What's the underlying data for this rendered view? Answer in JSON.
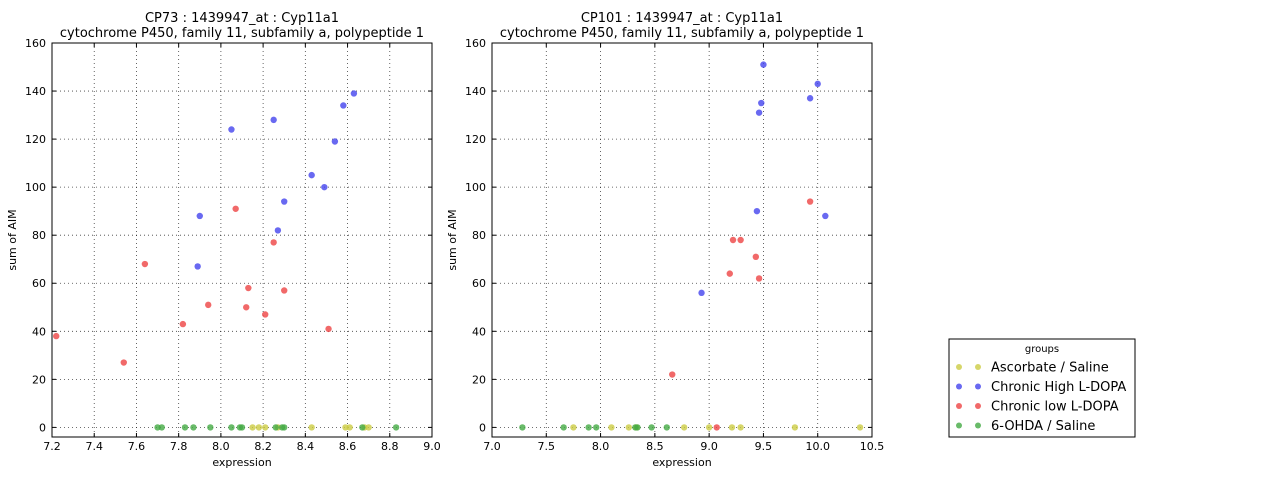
{
  "colors": {
    "ascorbate_saline": "#cccc44",
    "chronic_high": "#4444ee",
    "chronic_low": "#ee4444",
    "ohda_saline": "#44aa44"
  },
  "legend": {
    "title": "groups",
    "placement": "outside-right-bottom",
    "entries": [
      {
        "label": "Ascorbate / Saline",
        "color": "#cccc44"
      },
      {
        "label": "Chronic High L-DOPA",
        "color": "#4444ee"
      },
      {
        "label": "Chronic low L-DOPA",
        "color": "#ee4444"
      },
      {
        "label": "6-OHDA / Saline",
        "color": "#44aa44"
      }
    ]
  },
  "chart_data": [
    {
      "type": "scatter",
      "title": "CP73 : 1439947_at : Cyp11a1",
      "subtitle": "cytochrome P450, family 11, subfamily a, polypeptide 1",
      "xlabel": "expression",
      "ylabel": "sum of AIM",
      "xlim": [
        7.2,
        9.0
      ],
      "ylim": [
        -4,
        160
      ],
      "xticks": [
        7.2,
        7.4,
        7.6,
        7.8,
        8.0,
        8.2,
        8.4,
        8.6,
        8.8,
        9.0
      ],
      "xtick_labels": [
        "7.2",
        "7.4",
        "7.6",
        "7.8",
        "8.0",
        "8.2",
        "8.4",
        "8.6",
        "8.8",
        "9.0"
      ],
      "yticks": [
        0,
        20,
        40,
        60,
        80,
        100,
        120,
        140,
        160
      ],
      "ytick_labels": [
        "0",
        "20",
        "40",
        "60",
        "80",
        "100",
        "120",
        "140",
        "160"
      ],
      "grid": true,
      "series": [
        {
          "name": "Ascorbate / Saline",
          "color": "#cccc44",
          "points": [
            [
              8.15,
              0
            ],
            [
              8.18,
              0
            ],
            [
              8.21,
              0
            ],
            [
              8.27,
              0
            ],
            [
              8.43,
              0
            ],
            [
              8.59,
              0
            ],
            [
              8.61,
              0
            ],
            [
              8.68,
              0
            ],
            [
              8.7,
              0
            ]
          ]
        },
        {
          "name": "Chronic High L-DOPA",
          "color": "#4444ee",
          "points": [
            [
              7.89,
              67
            ],
            [
              7.9,
              88
            ],
            [
              8.05,
              124
            ],
            [
              8.25,
              128
            ],
            [
              8.27,
              82
            ],
            [
              8.3,
              94
            ],
            [
              8.43,
              105
            ],
            [
              8.49,
              100
            ],
            [
              8.54,
              119
            ],
            [
              8.58,
              134
            ],
            [
              8.63,
              139
            ]
          ]
        },
        {
          "name": "Chronic low L-DOPA",
          "color": "#ee4444",
          "points": [
            [
              7.22,
              38
            ],
            [
              7.54,
              27
            ],
            [
              7.64,
              68
            ],
            [
              7.82,
              43
            ],
            [
              7.94,
              51
            ],
            [
              8.07,
              91
            ],
            [
              8.12,
              50
            ],
            [
              8.13,
              58
            ],
            [
              8.21,
              47
            ],
            [
              8.25,
              77
            ],
            [
              8.3,
              57
            ],
            [
              8.51,
              41
            ]
          ]
        },
        {
          "name": "6-OHDA / Saline",
          "color": "#44aa44",
          "points": [
            [
              7.7,
              0
            ],
            [
              7.72,
              0
            ],
            [
              7.83,
              0
            ],
            [
              7.87,
              0
            ],
            [
              7.95,
              0
            ],
            [
              8.05,
              0
            ],
            [
              8.09,
              0
            ],
            [
              8.1,
              0
            ],
            [
              8.26,
              0
            ],
            [
              8.29,
              0
            ],
            [
              8.3,
              0
            ],
            [
              8.67,
              0
            ],
            [
              8.83,
              0
            ]
          ]
        }
      ]
    },
    {
      "type": "scatter",
      "title": "CP101 : 1439947_at : Cyp11a1",
      "subtitle": "cytochrome P450, family 11, subfamily a, polypeptide 1",
      "xlabel": "expression",
      "ylabel": "sum of AIM",
      "xlim": [
        7.0,
        10.5
      ],
      "ylim": [
        -4,
        160
      ],
      "xticks": [
        7.0,
        7.5,
        8.0,
        8.5,
        9.0,
        9.5,
        10.0,
        10.5
      ],
      "xtick_labels": [
        "7.0",
        "7.5",
        "8.0",
        "8.5",
        "9.0",
        "9.5",
        "10.0",
        "10.5"
      ],
      "yticks": [
        0,
        20,
        40,
        60,
        80,
        100,
        120,
        140,
        160
      ],
      "ytick_labels": [
        "0",
        "20",
        "40",
        "60",
        "80",
        "100",
        "120",
        "140",
        "160"
      ],
      "grid": true,
      "series": [
        {
          "name": "Ascorbate / Saline",
          "color": "#cccc44",
          "points": [
            [
              7.75,
              0
            ],
            [
              8.1,
              0
            ],
            [
              8.26,
              0
            ],
            [
              8.33,
              0
            ],
            [
              8.77,
              0
            ],
            [
              9.0,
              0
            ],
            [
              9.21,
              0
            ],
            [
              9.29,
              0
            ],
            [
              9.79,
              0
            ],
            [
              10.39,
              0
            ]
          ]
        },
        {
          "name": "Chronic High L-DOPA",
          "color": "#4444ee",
          "points": [
            [
              8.93,
              56
            ],
            [
              9.44,
              90
            ],
            [
              9.46,
              131
            ],
            [
              9.48,
              135
            ],
            [
              9.5,
              151
            ],
            [
              9.93,
              137
            ],
            [
              10.0,
              143
            ],
            [
              10.07,
              88
            ]
          ]
        },
        {
          "name": "Chronic low L-DOPA",
          "color": "#ee4444",
          "points": [
            [
              8.66,
              22
            ],
            [
              9.07,
              0
            ],
            [
              9.19,
              64
            ],
            [
              9.22,
              78
            ],
            [
              9.29,
              78
            ],
            [
              9.43,
              71
            ],
            [
              9.46,
              62
            ],
            [
              9.93,
              94
            ]
          ]
        },
        {
          "name": "6-OHDA / Saline",
          "color": "#44aa44",
          "points": [
            [
              7.28,
              0
            ],
            [
              7.66,
              0
            ],
            [
              7.89,
              0
            ],
            [
              7.96,
              0
            ],
            [
              8.32,
              0
            ],
            [
              8.34,
              0
            ],
            [
              8.47,
              0
            ],
            [
              8.61,
              0
            ]
          ]
        }
      ]
    }
  ]
}
